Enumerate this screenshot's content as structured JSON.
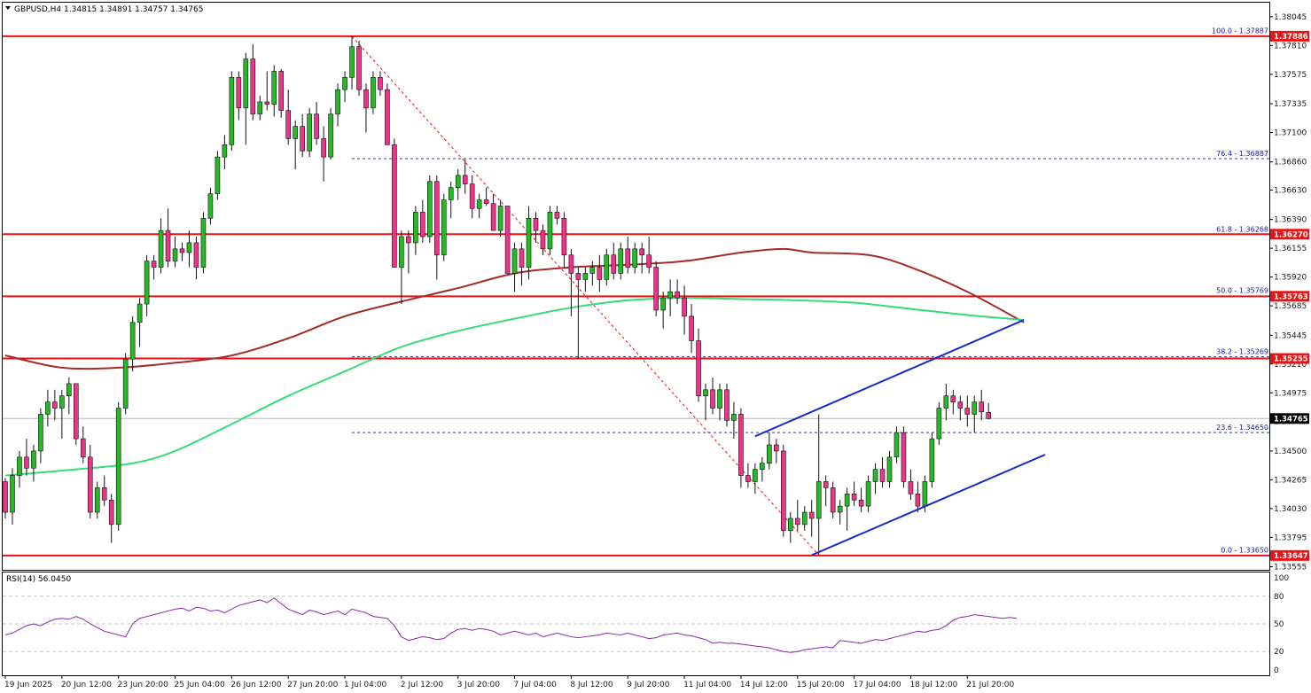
{
  "header": {
    "symbol_line": "GBPUSD,H4  1.34815 1.34891 1.34757 1.34765",
    "rsi_label": "RSI(14) 56.0450"
  },
  "colors": {
    "bull": "#22bb22",
    "bear": "#ee3388",
    "sma_fast": "#a52a2a",
    "sma_slow": "#33dd77",
    "level": "#ee1111",
    "channel": "#1a2acc",
    "fib_dotted": "#2a3aaa",
    "rsi": "#8a2aa8"
  },
  "chart_data": {
    "type": "candlestick",
    "symbol": "GBPUSD",
    "timeframe": "H4",
    "ohlc_header": {
      "open": 1.34815,
      "high": 1.34891,
      "low": 1.34757,
      "close": 1.34765
    },
    "ylim": [
      1.3353,
      1.3816
    ],
    "y_ticks": [
      "1.38045",
      "1.37810",
      "1.37575",
      "1.37335",
      "1.37100",
      "1.36860",
      "1.36630",
      "1.36390",
      "1.36155",
      "1.35920",
      "1.35685",
      "1.35445",
      "1.35210",
      "1.34975",
      "1.34740",
      "1.34500",
      "1.34265",
      "1.34030",
      "1.33795",
      "1.33555"
    ],
    "x_ticks": [
      "19 Jun 2025",
      "20 Jun 12:00",
      "23 Jun 20:00",
      "25 Jun 04:00",
      "26 Jun 12:00",
      "27 Jun 20:00",
      "1 Jul 04:00",
      "2 Jul 12:00",
      "3 Jul 20:00",
      "7 Jul 04:00",
      "8 Jul 12:00",
      "9 Jul 20:00",
      "11 Jul 04:00",
      "14 Jul 12:00",
      "15 Jul 20:00",
      "17 Jul 04:00",
      "18 Jul 12:00",
      "21 Jul 20:00"
    ],
    "x_tick_bars": [
      0,
      8,
      16,
      24,
      32,
      40,
      48,
      56,
      64,
      72,
      80,
      88,
      96,
      104,
      112,
      120,
      128,
      136
    ],
    "price_levels": [
      {
        "label": "1.37886",
        "value": 1.37886
      },
      {
        "label": "1.36270",
        "value": 1.3627
      },
      {
        "label": "1.35763",
        "value": 1.35763
      },
      {
        "label": "1.35255",
        "value": 1.35255
      },
      {
        "label": "1.33647",
        "value": 1.33647
      }
    ],
    "current_price": {
      "label": "1.34765",
      "value": 1.34765
    },
    "fibonacci": [
      {
        "label": "100.0 - 1.37887",
        "value": 1.37887
      },
      {
        "label": "76.4 - 1.36887",
        "value": 1.36887
      },
      {
        "label": "61.8 - 1.36268",
        "value": 1.36268
      },
      {
        "label": "50.0 - 1.35769",
        "value": 1.35769
      },
      {
        "label": "38.2 - 1.35269",
        "value": 1.35269
      },
      {
        "label": "23.6 - 1.34650",
        "value": 1.3465
      },
      {
        "label": "0.0 - 1.33650",
        "value": 1.3365
      }
    ],
    "fib_trendline": {
      "from": {
        "bar": 49,
        "price": 1.37886
      },
      "to": {
        "bar": 115,
        "price": 1.3365
      }
    },
    "upper_channel": {
      "from": {
        "bar": 106,
        "price": 1.3462
      },
      "to": {
        "bar": 144,
        "price": 1.3557
      }
    },
    "lower_channel": {
      "from": {
        "bar": 114,
        "price": 1.3365
      },
      "to": {
        "bar": 147,
        "price": 1.3447
      }
    },
    "candles": [
      [
        1.3425,
        1.3428,
        1.3395,
        1.34
      ],
      [
        1.34,
        1.3436,
        1.339,
        1.343
      ],
      [
        1.343,
        1.345,
        1.342,
        1.3445
      ],
      [
        1.3445,
        1.346,
        1.343,
        1.3436
      ],
      [
        1.3436,
        1.3455,
        1.3425,
        1.345
      ],
      [
        1.345,
        1.3485,
        1.344,
        1.348
      ],
      [
        1.348,
        1.35,
        1.347,
        1.349
      ],
      [
        1.349,
        1.35,
        1.3475,
        1.3485
      ],
      [
        1.3485,
        1.35,
        1.346,
        1.3495
      ],
      [
        1.3495,
        1.351,
        1.348,
        1.3505
      ],
      [
        1.3505,
        1.3505,
        1.3455,
        1.346
      ],
      [
        1.346,
        1.347,
        1.344,
        1.3445
      ],
      [
        1.3445,
        1.3455,
        1.3395,
        1.34
      ],
      [
        1.34,
        1.3425,
        1.3395,
        1.342
      ],
      [
        1.342,
        1.343,
        1.3405,
        1.341
      ],
      [
        1.341,
        1.3415,
        1.3375,
        1.339
      ],
      [
        1.339,
        1.349,
        1.3385,
        1.3485
      ],
      [
        1.3485,
        1.353,
        1.348,
        1.3525
      ],
      [
        1.3525,
        1.356,
        1.3515,
        1.3555
      ],
      [
        1.3555,
        1.3575,
        1.3535,
        1.357
      ],
      [
        1.357,
        1.361,
        1.356,
        1.3605
      ],
      [
        1.3605,
        1.361,
        1.359,
        1.36
      ],
      [
        1.36,
        1.364,
        1.3595,
        1.363
      ],
      [
        1.363,
        1.3648,
        1.36,
        1.3605
      ],
      [
        1.3605,
        1.3625,
        1.36,
        1.3615
      ],
      [
        1.3615,
        1.362,
        1.3605,
        1.3612
      ],
      [
        1.3612,
        1.363,
        1.36,
        1.362
      ],
      [
        1.362,
        1.3625,
        1.359,
        1.36
      ],
      [
        1.36,
        1.3645,
        1.3595,
        1.364
      ],
      [
        1.364,
        1.3665,
        1.3635,
        1.366
      ],
      [
        1.366,
        1.3695,
        1.3655,
        1.369
      ],
      [
        1.369,
        1.3708,
        1.368,
        1.37
      ],
      [
        1.37,
        1.376,
        1.3695,
        1.3755
      ],
      [
        1.3755,
        1.376,
        1.372,
        1.373
      ],
      [
        1.373,
        1.3775,
        1.37,
        1.377
      ],
      [
        1.377,
        1.3782,
        1.372,
        1.3725
      ],
      [
        1.3725,
        1.374,
        1.372,
        1.3735
      ],
      [
        1.3735,
        1.376,
        1.3728,
        1.3733
      ],
      [
        1.3733,
        1.3765,
        1.3723,
        1.376
      ],
      [
        1.376,
        1.3762,
        1.3722,
        1.3728
      ],
      [
        1.3728,
        1.3745,
        1.37,
        1.3705
      ],
      [
        1.3705,
        1.372,
        1.368,
        1.3715
      ],
      [
        1.3715,
        1.3725,
        1.369,
        1.3695
      ],
      [
        1.3695,
        1.373,
        1.369,
        1.3725
      ],
      [
        1.3725,
        1.3735,
        1.37,
        1.3705
      ],
      [
        1.3705,
        1.3715,
        1.367,
        1.369
      ],
      [
        1.369,
        1.373,
        1.3688,
        1.3725
      ],
      [
        1.3725,
        1.375,
        1.3715,
        1.3745
      ],
      [
        1.3745,
        1.376,
        1.3735,
        1.3755
      ],
      [
        1.3755,
        1.3789,
        1.3745,
        1.378
      ],
      [
        1.378,
        1.3785,
        1.374,
        1.3745
      ],
      [
        1.3745,
        1.375,
        1.371,
        1.373
      ],
      [
        1.373,
        1.376,
        1.3725,
        1.3755
      ],
      [
        1.3755,
        1.376,
        1.374,
        1.3745
      ],
      [
        1.3745,
        1.375,
        1.37,
        1.37
      ],
      [
        1.37,
        1.3705,
        1.36,
        1.36
      ],
      [
        1.36,
        1.363,
        1.357,
        1.3625
      ],
      [
        1.3625,
        1.363,
        1.3595,
        1.362
      ],
      [
        1.362,
        1.365,
        1.361,
        1.3645
      ],
      [
        1.3645,
        1.3655,
        1.362,
        1.3625
      ],
      [
        1.3625,
        1.3675,
        1.362,
        1.367
      ],
      [
        1.367,
        1.3675,
        1.359,
        1.361
      ],
      [
        1.361,
        1.366,
        1.3605,
        1.3655
      ],
      [
        1.3655,
        1.367,
        1.364,
        1.3665
      ],
      [
        1.3665,
        1.368,
        1.3655,
        1.3675
      ],
      [
        1.3675,
        1.3688,
        1.366,
        1.3668
      ],
      [
        1.3668,
        1.3675,
        1.364,
        1.3648
      ],
      [
        1.3648,
        1.366,
        1.364,
        1.3655
      ],
      [
        1.3655,
        1.3665,
        1.365,
        1.3652
      ],
      [
        1.3652,
        1.366,
        1.363,
        1.363
      ],
      [
        1.363,
        1.3655,
        1.3625,
        1.365
      ],
      [
        1.365,
        1.365,
        1.3595,
        1.3595
      ],
      [
        1.3595,
        1.362,
        1.358,
        1.3615
      ],
      [
        1.3615,
        1.362,
        1.3585,
        1.36
      ],
      [
        1.36,
        1.365,
        1.359,
        1.364
      ],
      [
        1.364,
        1.3645,
        1.362,
        1.363
      ],
      [
        1.363,
        1.3635,
        1.361,
        1.3615
      ],
      [
        1.3615,
        1.365,
        1.361,
        1.3645
      ],
      [
        1.3645,
        1.365,
        1.3635,
        1.364
      ],
      [
        1.364,
        1.3645,
        1.36,
        1.361
      ],
      [
        1.361,
        1.3615,
        1.356,
        1.3595
      ],
      [
        1.3595,
        1.36,
        1.3525,
        1.359
      ],
      [
        1.359,
        1.36,
        1.358,
        1.3595
      ],
      [
        1.3595,
        1.3605,
        1.3585,
        1.36
      ],
      [
        1.36,
        1.361,
        1.358,
        1.359
      ],
      [
        1.359,
        1.3615,
        1.3585,
        1.361
      ],
      [
        1.361,
        1.362,
        1.359,
        1.3595
      ],
      [
        1.3595,
        1.362,
        1.359,
        1.3615
      ],
      [
        1.3615,
        1.3625,
        1.3595,
        1.36
      ],
      [
        1.36,
        1.362,
        1.3595,
        1.3615
      ],
      [
        1.3615,
        1.362,
        1.3595,
        1.361
      ],
      [
        1.361,
        1.3625,
        1.3595,
        1.36
      ],
      [
        1.36,
        1.3605,
        1.356,
        1.3565
      ],
      [
        1.3565,
        1.358,
        1.355,
        1.3575
      ],
      [
        1.3575,
        1.359,
        1.356,
        1.358
      ],
      [
        1.358,
        1.359,
        1.357,
        1.3575
      ],
      [
        1.3575,
        1.3585,
        1.3545,
        1.356
      ],
      [
        1.356,
        1.357,
        1.353,
        1.354
      ],
      [
        1.354,
        1.355,
        1.349,
        1.3495
      ],
      [
        1.3495,
        1.3505,
        1.3475,
        1.35
      ],
      [
        1.35,
        1.351,
        1.348,
        1.3485
      ],
      [
        1.3485,
        1.3505,
        1.3475,
        1.35
      ],
      [
        1.35,
        1.3505,
        1.347,
        1.3475
      ],
      [
        1.3475,
        1.349,
        1.346,
        1.348
      ],
      [
        1.348,
        1.3485,
        1.342,
        1.343
      ],
      [
        1.343,
        1.344,
        1.342,
        1.3425
      ],
      [
        1.3425,
        1.344,
        1.3415,
        1.3435
      ],
      [
        1.3435,
        1.3445,
        1.3425,
        1.344
      ],
      [
        1.344,
        1.3465,
        1.3435,
        1.3455
      ],
      [
        1.3455,
        1.346,
        1.344,
        1.345
      ],
      [
        1.345,
        1.3455,
        1.338,
        1.3385
      ],
      [
        1.3385,
        1.34,
        1.3375,
        1.3395
      ],
      [
        1.3395,
        1.341,
        1.3385,
        1.339
      ],
      [
        1.339,
        1.3405,
        1.3385,
        1.34
      ],
      [
        1.34,
        1.341,
        1.338,
        1.3395
      ],
      [
        1.3395,
        1.348,
        1.3365,
        1.3425
      ],
      [
        1.3425,
        1.343,
        1.3405,
        1.342
      ],
      [
        1.342,
        1.3425,
        1.3395,
        1.34
      ],
      [
        1.34,
        1.341,
        1.339,
        1.3405
      ],
      [
        1.3405,
        1.342,
        1.3385,
        1.3415
      ],
      [
        1.3415,
        1.3425,
        1.3405,
        1.341
      ],
      [
        1.341,
        1.342,
        1.34,
        1.3405
      ],
      [
        1.3405,
        1.343,
        1.34,
        1.3425
      ],
      [
        1.3425,
        1.344,
        1.3415,
        1.3435
      ],
      [
        1.3435,
        1.3445,
        1.342,
        1.3425
      ],
      [
        1.3425,
        1.345,
        1.342,
        1.3445
      ],
      [
        1.3445,
        1.347,
        1.344,
        1.3465
      ],
      [
        1.3465,
        1.347,
        1.342,
        1.3425
      ],
      [
        1.3425,
        1.3435,
        1.341,
        1.3415
      ],
      [
        1.3415,
        1.3425,
        1.34,
        1.3405
      ],
      [
        1.3405,
        1.343,
        1.34,
        1.3425
      ],
      [
        1.3425,
        1.3465,
        1.342,
        1.346
      ],
      [
        1.346,
        1.349,
        1.3455,
        1.3485
      ],
      [
        1.3485,
        1.3505,
        1.3475,
        1.3495
      ],
      [
        1.3495,
        1.35,
        1.348,
        1.349
      ],
      [
        1.349,
        1.3495,
        1.3475,
        1.3485
      ],
      [
        1.3485,
        1.3495,
        1.347,
        1.348
      ],
      [
        1.348,
        1.3495,
        1.3465,
        1.349
      ],
      [
        1.349,
        1.35,
        1.3475,
        1.3482
      ],
      [
        1.34815,
        1.34891,
        1.34757,
        1.34765
      ]
    ],
    "sma_fast": [
      [
        0,
        1.3528
      ],
      [
        8,
        1.3518
      ],
      [
        16,
        1.3518
      ],
      [
        24,
        1.3522
      ],
      [
        32,
        1.3528
      ],
      [
        40,
        1.3542
      ],
      [
        48,
        1.356
      ],
      [
        56,
        1.3572
      ],
      [
        64,
        1.3583
      ],
      [
        72,
        1.3595
      ],
      [
        80,
        1.36
      ],
      [
        88,
        1.3602
      ],
      [
        96,
        1.3605
      ],
      [
        104,
        1.3612
      ],
      [
        110,
        1.3615
      ],
      [
        114,
        1.3612
      ],
      [
        122,
        1.361
      ],
      [
        128,
        1.36
      ],
      [
        136,
        1.358
      ],
      [
        144,
        1.3555
      ]
    ],
    "sma_slow": [
      [
        0,
        1.343
      ],
      [
        10,
        1.3435
      ],
      [
        18,
        1.344
      ],
      [
        24,
        1.345
      ],
      [
        32,
        1.3472
      ],
      [
        40,
        1.3495
      ],
      [
        48,
        1.3515
      ],
      [
        56,
        1.3535
      ],
      [
        64,
        1.3548
      ],
      [
        72,
        1.3558
      ],
      [
        80,
        1.3567
      ],
      [
        88,
        1.3573
      ],
      [
        96,
        1.3575
      ],
      [
        104,
        1.3574
      ],
      [
        112,
        1.3573
      ],
      [
        120,
        1.3571
      ],
      [
        128,
        1.3566
      ],
      [
        136,
        1.3561
      ],
      [
        144,
        1.3557
      ]
    ],
    "rsi": {
      "label": "RSI(14)",
      "value": 56.045,
      "ylim": [
        0,
        100
      ],
      "levels": [
        80,
        50,
        20
      ],
      "ticks": [
        "100",
        "80",
        "50",
        "20",
        "0"
      ],
      "values": [
        38,
        40,
        44,
        48,
        50,
        48,
        52,
        55,
        56,
        55,
        58,
        55,
        50,
        46,
        42,
        40,
        38,
        36,
        50,
        56,
        58,
        60,
        62,
        64,
        66,
        67,
        64,
        68,
        67,
        64,
        65,
        62,
        66,
        70,
        72,
        74,
        76,
        73,
        78,
        72,
        66,
        63,
        60,
        65,
        63,
        60,
        62,
        64,
        60,
        66,
        64,
        62,
        58,
        57,
        56,
        48,
        36,
        32,
        34,
        36,
        35,
        33,
        34,
        40,
        44,
        45,
        43,
        45,
        44,
        42,
        38,
        40,
        42,
        40,
        38,
        40,
        36,
        38,
        40,
        38,
        36,
        35,
        36,
        37,
        38,
        40,
        39,
        38,
        40,
        38,
        36,
        34,
        35,
        38,
        39,
        40,
        38,
        37,
        35,
        33,
        29,
        30,
        29,
        29,
        28,
        27,
        26,
        25,
        24,
        22,
        20,
        19,
        20,
        22,
        23,
        24,
        25,
        24,
        32,
        31,
        30,
        29,
        31,
        33,
        32,
        34,
        36,
        38,
        40,
        42,
        41,
        43,
        44,
        48,
        54,
        57,
        58,
        60,
        59,
        58,
        57,
        56,
        57,
        56
      ]
    }
  }
}
